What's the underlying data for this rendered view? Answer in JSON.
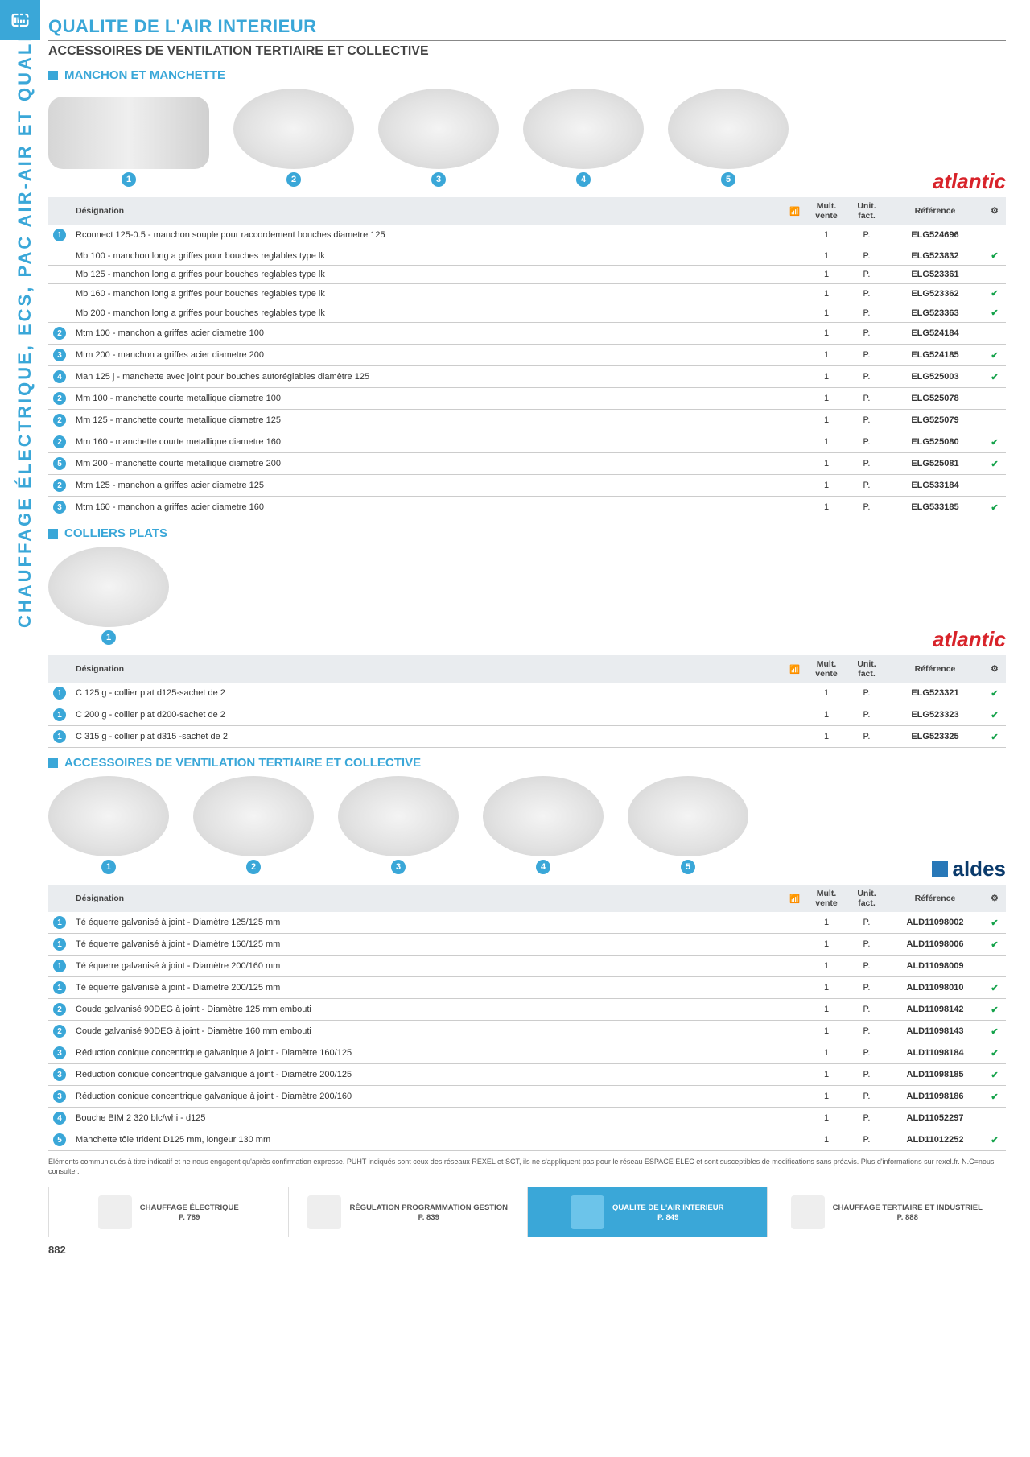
{
  "sidebar_text": "CHAUFFAGE ÉLECTRIQUE, ECS, PAC AIR-AIR ET QUALITE DE L'AIR INTERIEUR",
  "page_number": "882",
  "main_title": "QUALITE DE L'AIR INTERIEUR",
  "subtitle": "ACCESSOIRES DE VENTILATION TERTIAIRE ET COLLECTIVE",
  "sections": {
    "s1": {
      "heading": "MANCHON ET MANCHETTE",
      "brand": "atlantic",
      "img_count": 5,
      "columns": {
        "c1": "Désignation",
        "c2": "Mult. vente",
        "c3": "Unit. fact.",
        "c4": "Référence"
      },
      "rows": [
        {
          "n": "1",
          "d": "Rconnect 125-0.5 - manchon souple pour raccordement bouches diametre 125",
          "m": "1",
          "u": "P.",
          "r": "ELG524696",
          "ck": ""
        },
        {
          "n": "",
          "d": "Mb 100 - manchon long a griffes pour bouches reglables type lk",
          "m": "1",
          "u": "P.",
          "r": "ELG523832",
          "ck": "✔"
        },
        {
          "n": "",
          "d": "Mb 125 - manchon long a griffes pour bouches reglables type lk",
          "m": "1",
          "u": "P.",
          "r": "ELG523361",
          "ck": ""
        },
        {
          "n": "",
          "d": "Mb 160 - manchon long a griffes pour bouches reglables type lk",
          "m": "1",
          "u": "P.",
          "r": "ELG523362",
          "ck": "✔"
        },
        {
          "n": "",
          "d": "Mb 200 - manchon long a griffes pour bouches reglables type lk",
          "m": "1",
          "u": "P.",
          "r": "ELG523363",
          "ck": "✔"
        },
        {
          "n": "2",
          "d": "Mtm 100 - manchon a griffes acier diametre 100",
          "m": "1",
          "u": "P.",
          "r": "ELG524184",
          "ck": ""
        },
        {
          "n": "3",
          "d": "Mtm 200 - manchon a griffes acier diametre 200",
          "m": "1",
          "u": "P.",
          "r": "ELG524185",
          "ck": "✔"
        },
        {
          "n": "4",
          "d": "Man 125 j - manchette avec joint pour bouches autoréglables diamètre 125",
          "m": "1",
          "u": "P.",
          "r": "ELG525003",
          "ck": "✔"
        },
        {
          "n": "2",
          "d": "Mm 100 - manchette courte metallique diametre 100",
          "m": "1",
          "u": "P.",
          "r": "ELG525078",
          "ck": ""
        },
        {
          "n": "2",
          "d": "Mm 125 - manchette courte metallique diametre 125",
          "m": "1",
          "u": "P.",
          "r": "ELG525079",
          "ck": ""
        },
        {
          "n": "2",
          "d": "Mm 160 - manchette courte metallique diametre 160",
          "m": "1",
          "u": "P.",
          "r": "ELG525080",
          "ck": "✔"
        },
        {
          "n": "5",
          "d": "Mm 200 - manchette courte metallique diametre 200",
          "m": "1",
          "u": "P.",
          "r": "ELG525081",
          "ck": "✔"
        },
        {
          "n": "2",
          "d": "Mtm 125 - manchon a griffes acier diametre 125",
          "m": "1",
          "u": "P.",
          "r": "ELG533184",
          "ck": ""
        },
        {
          "n": "3",
          "d": "Mtm 160 - manchon a griffes acier diametre 160",
          "m": "1",
          "u": "P.",
          "r": "ELG533185",
          "ck": "✔"
        }
      ]
    },
    "s2": {
      "heading": "COLLIERS PLATS",
      "brand": "atlantic",
      "img_count": 1,
      "columns": {
        "c1": "Désignation",
        "c2": "Mult. vente",
        "c3": "Unit. fact.",
        "c4": "Référence"
      },
      "rows": [
        {
          "n": "1",
          "d": "C 125 g - collier plat d125-sachet de 2",
          "m": "1",
          "u": "P.",
          "r": "ELG523321",
          "ck": "✔"
        },
        {
          "n": "1",
          "d": "C 200 g - collier plat d200-sachet de 2",
          "m": "1",
          "u": "P.",
          "r": "ELG523323",
          "ck": "✔"
        },
        {
          "n": "1",
          "d": "C 315 g - collier plat d315 -sachet de 2",
          "m": "1",
          "u": "P.",
          "r": "ELG523325",
          "ck": "✔"
        }
      ]
    },
    "s3": {
      "heading": "ACCESSOIRES DE VENTILATION TERTIAIRE ET COLLECTIVE",
      "brand": "aldes",
      "img_count": 5,
      "columns": {
        "c1": "Désignation",
        "c2": "Mult. vente",
        "c3": "Unit. fact.",
        "c4": "Référence"
      },
      "rows": [
        {
          "n": "1",
          "d": "Té équerre galvanisé à joint - Diamètre 125/125 mm",
          "m": "1",
          "u": "P.",
          "r": "ALD11098002",
          "ck": "✔"
        },
        {
          "n": "1",
          "d": "Té équerre galvanisé à joint - Diamètre 160/125 mm",
          "m": "1",
          "u": "P.",
          "r": "ALD11098006",
          "ck": "✔"
        },
        {
          "n": "1",
          "d": "Té équerre galvanisé à joint - Diamètre 200/160 mm",
          "m": "1",
          "u": "P.",
          "r": "ALD11098009",
          "ck": ""
        },
        {
          "n": "1",
          "d": "Té équerre galvanisé à joint - Diamètre 200/125 mm",
          "m": "1",
          "u": "P.",
          "r": "ALD11098010",
          "ck": "✔"
        },
        {
          "n": "2",
          "d": "Coude galvanisé 90DEG à joint - Diamètre 125 mm embouti",
          "m": "1",
          "u": "P.",
          "r": "ALD11098142",
          "ck": "✔"
        },
        {
          "n": "2",
          "d": "Coude galvanisé 90DEG à joint - Diamètre 160 mm embouti",
          "m": "1",
          "u": "P.",
          "r": "ALD11098143",
          "ck": "✔"
        },
        {
          "n": "3",
          "d": "Réduction conique concentrique galvanique à joint - Diamètre 160/125",
          "m": "1",
          "u": "P.",
          "r": "ALD11098184",
          "ck": "✔"
        },
        {
          "n": "3",
          "d": "Réduction conique concentrique galvanique à joint - Diamètre 200/125",
          "m": "1",
          "u": "P.",
          "r": "ALD11098185",
          "ck": "✔"
        },
        {
          "n": "3",
          "d": "Réduction conique concentrique galvanique à joint - Diamètre 200/160",
          "m": "1",
          "u": "P.",
          "r": "ALD11098186",
          "ck": "✔"
        },
        {
          "n": "4",
          "d": "Bouche BIM 2 320 blc/whi - d125",
          "m": "1",
          "u": "P.",
          "r": "ALD11052297",
          "ck": ""
        },
        {
          "n": "5",
          "d": "Manchette tôle trident D125 mm, longeur 130 mm",
          "m": "1",
          "u": "P.",
          "r": "ALD11012252",
          "ck": "✔"
        }
      ]
    }
  },
  "footnote": "Éléments communiqués à titre indicatif et ne nous engagent qu'après confirmation expresse. PUHT indiqués sont ceux des réseaux REXEL et SCT, ils ne s'appliquent pas pour le réseau ESPACE ELEC et sont susceptibles de modifications sans préavis. Plus d'informations sur rexel.fr. N.C=nous consulter.",
  "tabs": [
    {
      "t": "CHAUFFAGE ÉLECTRIQUE",
      "p": "P. 789",
      "active": false
    },
    {
      "t": "RÉGULATION PROGRAMMATION GESTION",
      "p": "P. 839",
      "active": false
    },
    {
      "t": "QUALITE DE L'AIR INTERIEUR",
      "p": "P. 849",
      "active": true
    },
    {
      "t": "CHAUFFAGE TERTIAIRE ET INDUSTRIEL",
      "p": "P. 888",
      "active": false
    }
  ]
}
